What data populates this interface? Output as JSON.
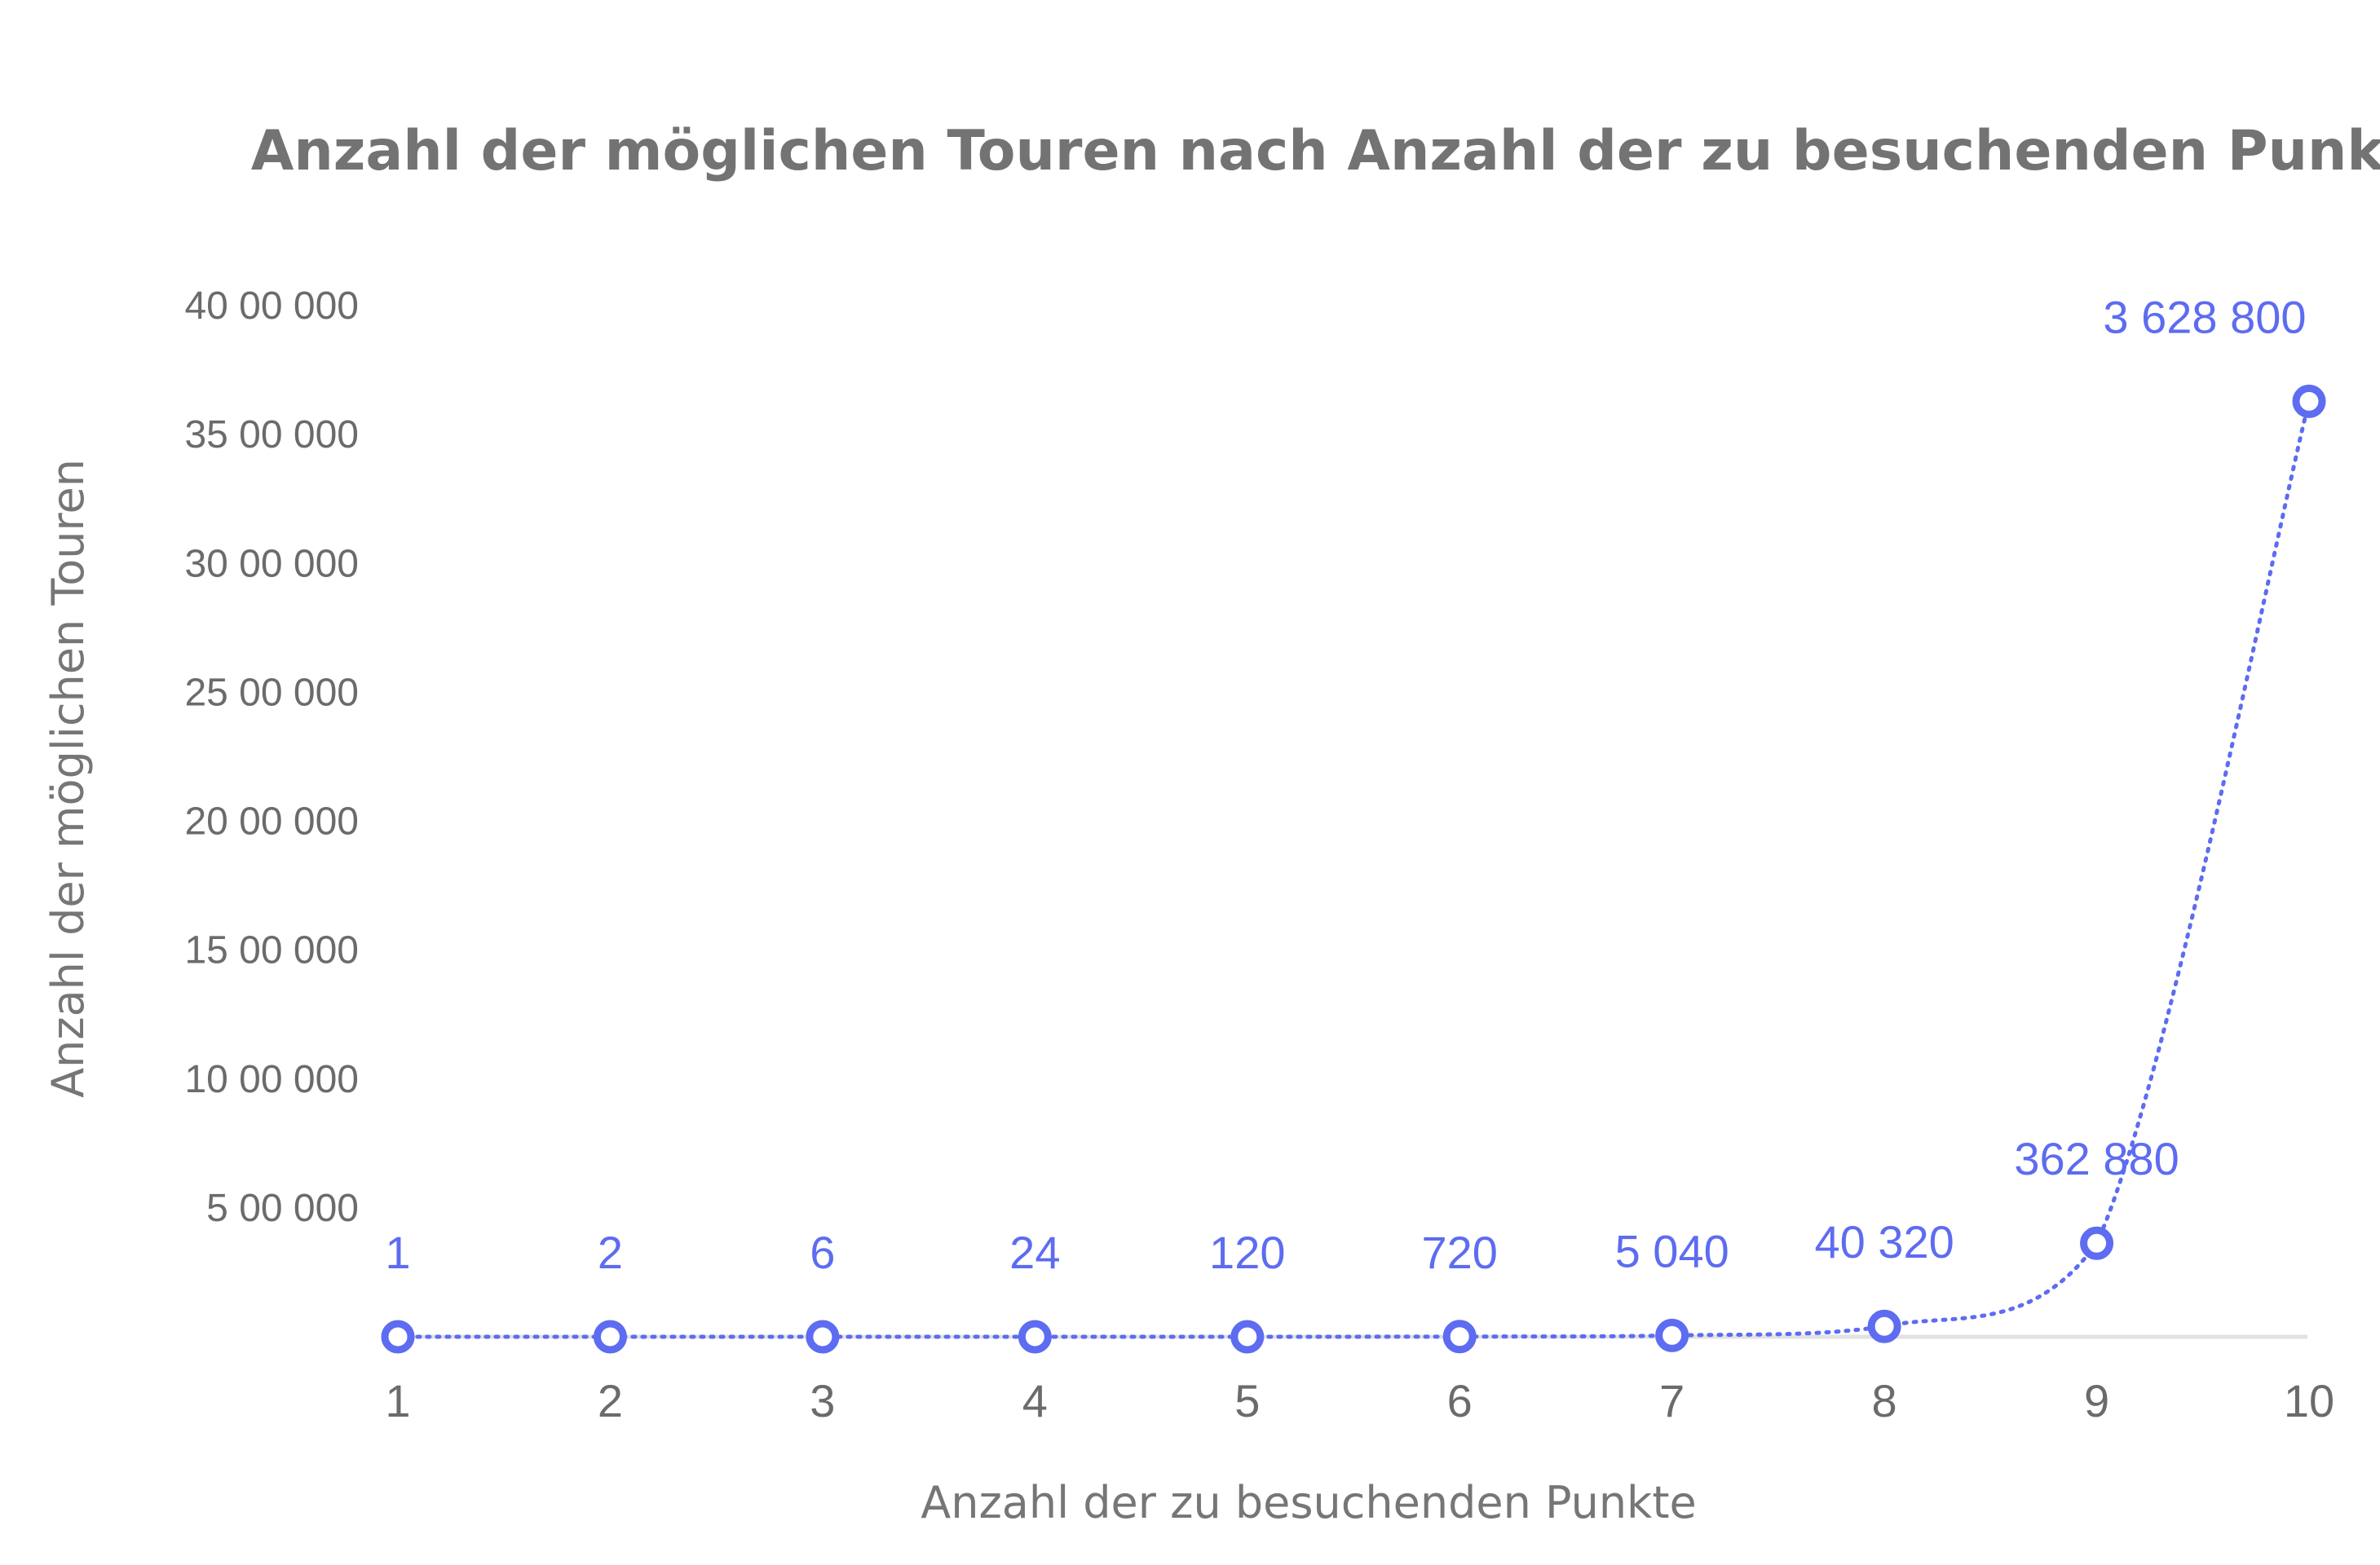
{
  "chart_data": {
    "type": "line",
    "title": "Anzahl der möglichen Touren nach Anzahl der zu besuchenden Punkte",
    "xlabel": "Anzahl der zu besuchenden Punkte",
    "ylabel": "Anzahl der möglichen Touren",
    "categories": [
      "1",
      "2",
      "3",
      "4",
      "5",
      "6",
      "7",
      "8",
      "9",
      "10"
    ],
    "series": [
      {
        "name": "Anzahl der möglichen Touren",
        "values": [
          1,
          2,
          6,
          24,
          120,
          720,
          5040,
          40320,
          362880,
          3628800
        ],
        "labels": [
          "1",
          "2",
          "6",
          "24",
          "120",
          "720",
          "5 040",
          "40 320",
          "362 880",
          "3 628 800"
        ],
        "color": "#5d6cf0"
      }
    ],
    "ylim": [
      0,
      4000000
    ],
    "yticks": [
      500000,
      1000000,
      1500000,
      2000000,
      2500000,
      3000000,
      3500000,
      4000000
    ],
    "ytick_labels": [
      "5 00 000",
      "10 00 000",
      "15 00 000",
      "20 00 000",
      "25 00 000",
      "30 00 000",
      "35 00 000",
      "40 00 000"
    ],
    "grid": false,
    "legend": "none"
  }
}
